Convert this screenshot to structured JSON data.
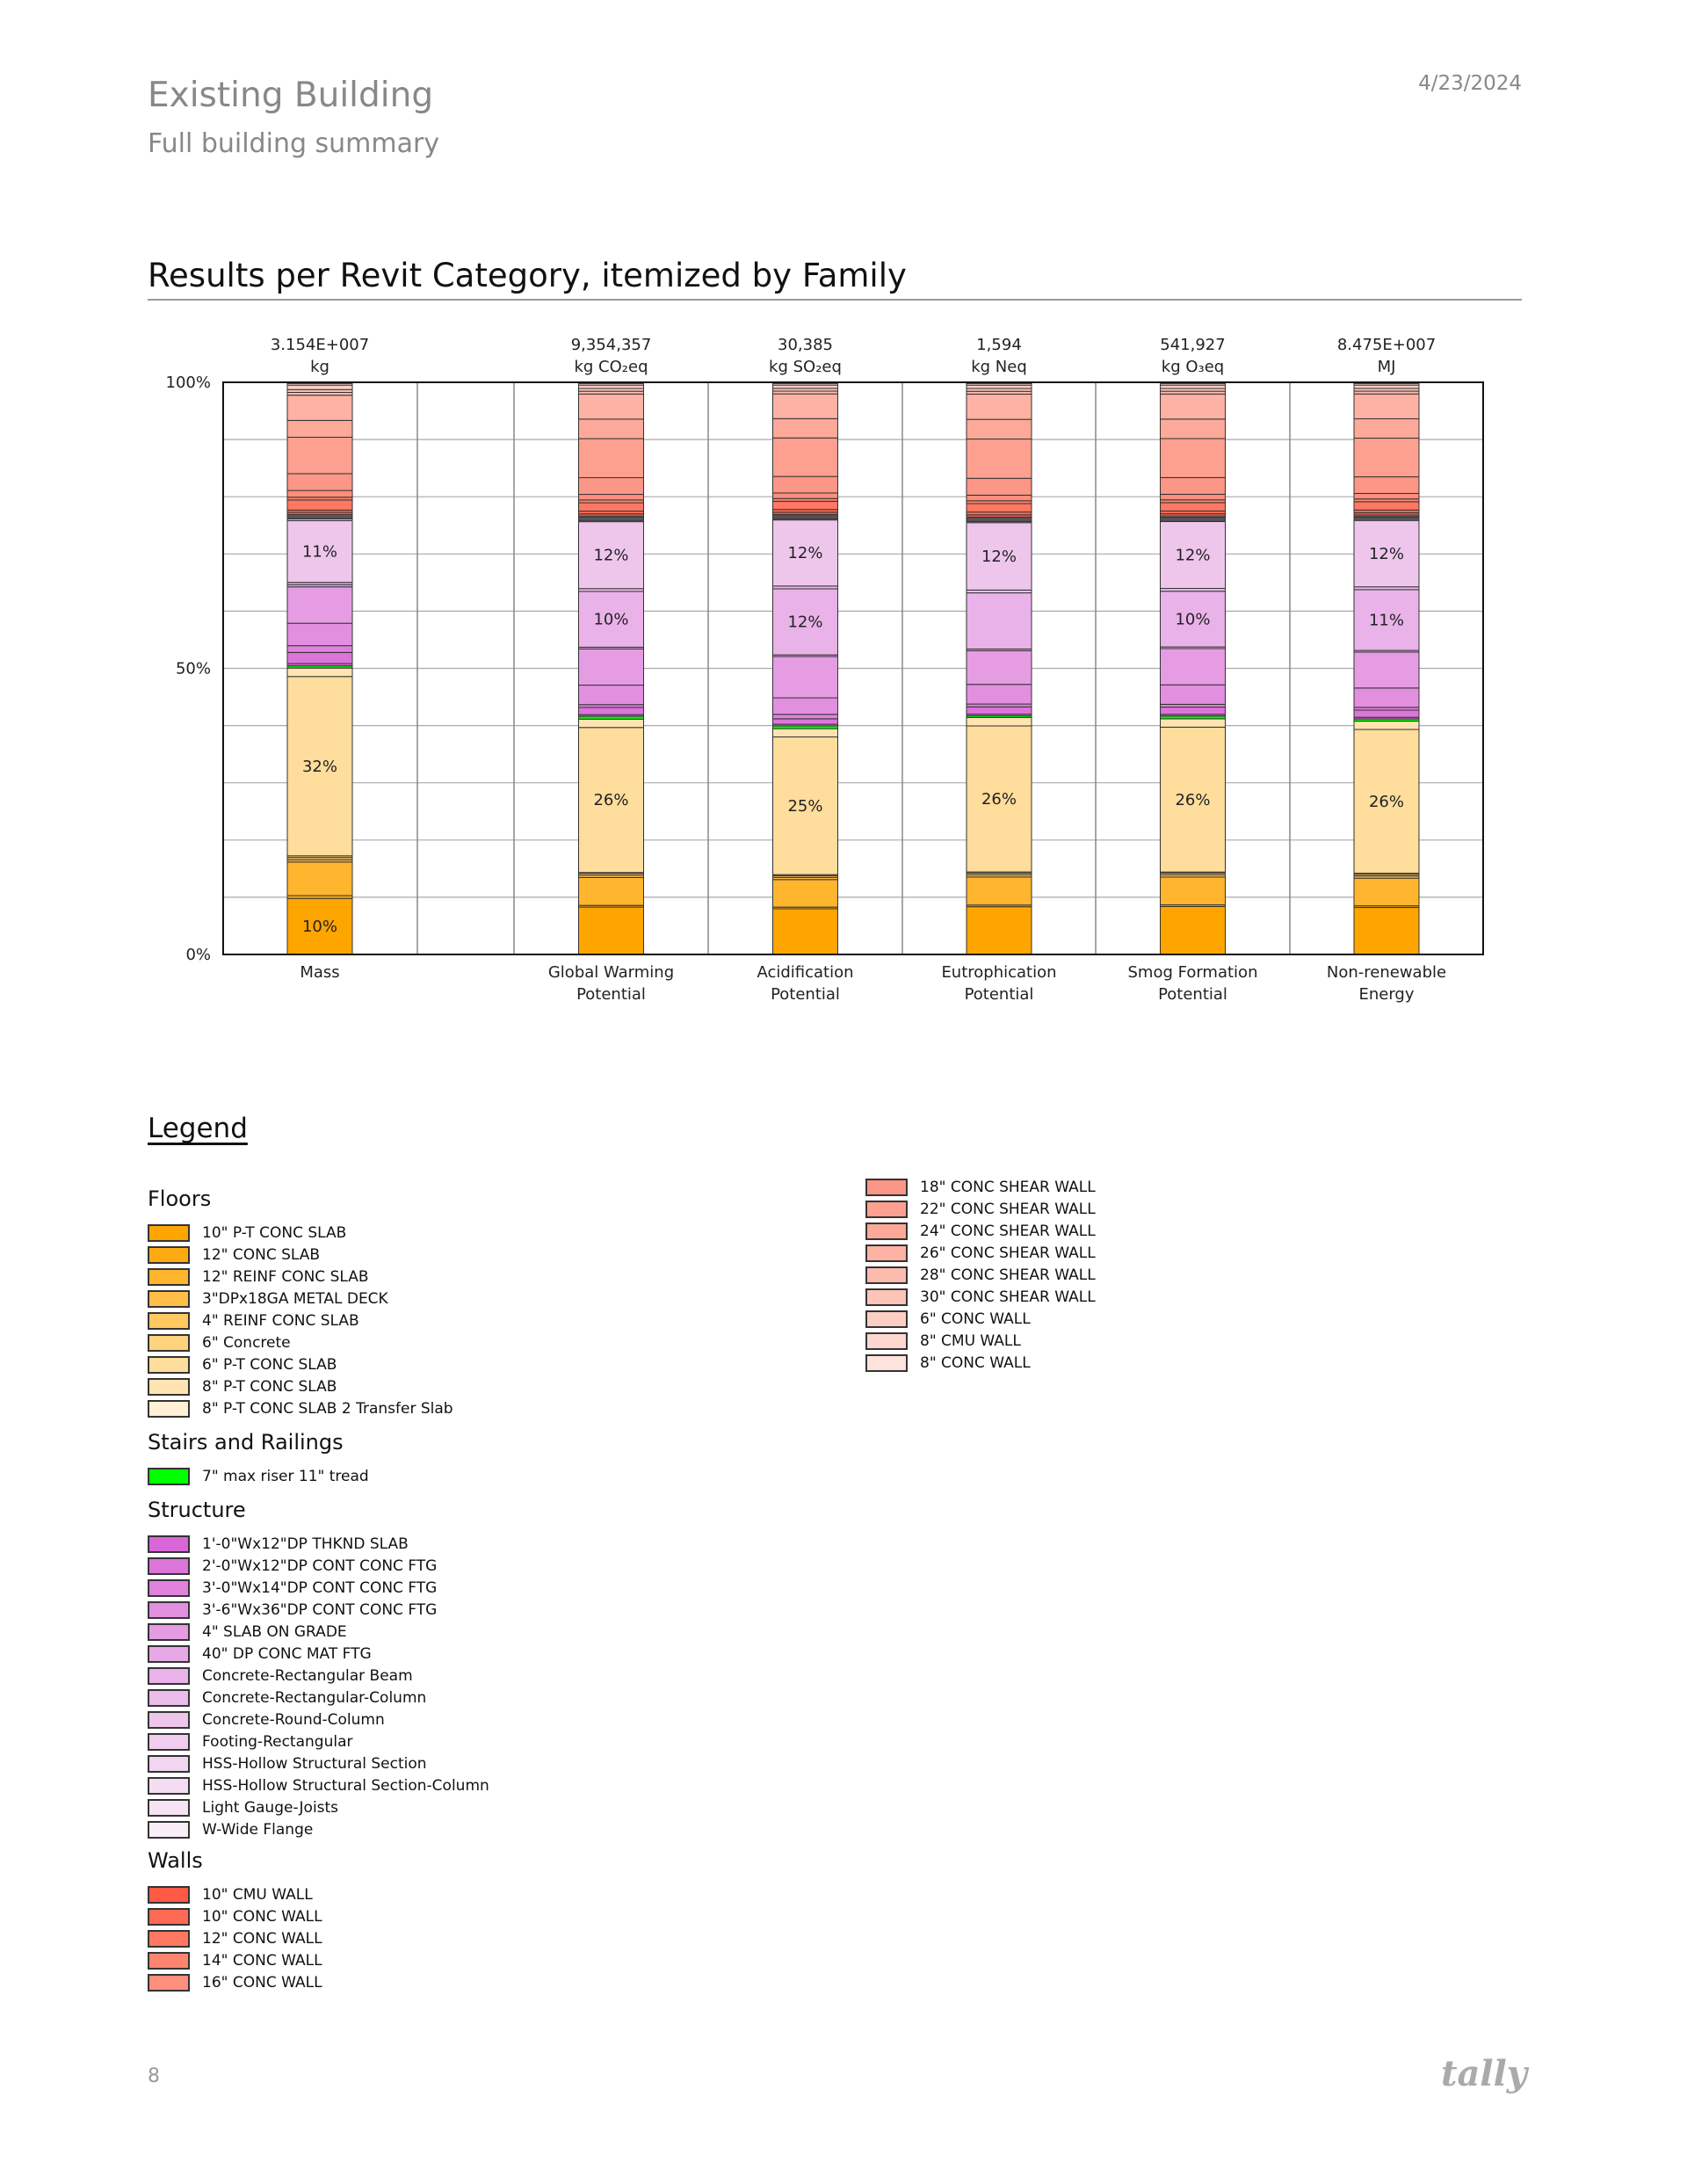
{
  "header": {
    "title": "Existing Building",
    "subtitle": "Full building summary",
    "date": "4/23/2024"
  },
  "section_title": "Results per Revit Category, itemized by Family",
  "legend": {
    "title": "Legend",
    "groups": [
      {
        "name": "Floors",
        "items": [
          {
            "label": "10\" P-T CONC SLAB",
            "color": "#FFA500"
          },
          {
            "label": "12\" CONC SLAB",
            "color": "#FFAA10"
          },
          {
            "label": "12\" REINF CONC SLAB",
            "color": "#FFB52E"
          },
          {
            "label": "3\"DPx18GA METAL DECK",
            "color": "#FFBE48"
          },
          {
            "label": "4\" REINF CONC SLAB",
            "color": "#FFC860"
          },
          {
            "label": "6\" Concrete",
            "color": "#FFD37E"
          },
          {
            "label": "6\" P-T CONC SLAB",
            "color": "#FFDD9C"
          },
          {
            "label": "8\" P-T CONC SLAB",
            "color": "#FFE4B2"
          },
          {
            "label": "8\" P-T CONC SLAB 2 Transfer Slab",
            "color": "#FFF0D6"
          }
        ]
      },
      {
        "name": "Stairs and Railings",
        "items": [
          {
            "label": "7\" max riser 11\" tread",
            "color": "#00FF00"
          }
        ]
      },
      {
        "name": "Structure",
        "items": [
          {
            "label": "1'-0\"Wx12\"DP THKND SLAB",
            "color": "#D966D6"
          },
          {
            "label": "2'-0\"Wx12\"DP CONT CONC FTG",
            "color": "#DC74DA"
          },
          {
            "label": "3'-0\"Wx14\"DP CONT CONC FTG",
            "color": "#DF82DD"
          },
          {
            "label": "3'-6\"Wx36\"DP CONT CONC FTG",
            "color": "#E28FE0"
          },
          {
            "label": "4\" SLAB ON GRADE",
            "color": "#E59CE3"
          },
          {
            "label": "40\" DP CONC MAT FTG",
            "color": "#E7A8E6"
          },
          {
            "label": "Concrete-Rectangular Beam",
            "color": "#E9B2E8"
          },
          {
            "label": "Concrete-Rectangular-Column",
            "color": "#EBBCEA"
          },
          {
            "label": "Concrete-Round-Column",
            "color": "#EEC6EC"
          },
          {
            "label": "Footing-Rectangular",
            "color": "#F0CDEE"
          },
          {
            "label": "HSS-Hollow Structural Section",
            "color": "#F2D5F1"
          },
          {
            "label": "HSS-Hollow Structural Section-Column",
            "color": "#F4DDF3"
          },
          {
            "label": "Light Gauge-Joists",
            "color": "#F6E4F5"
          },
          {
            "label": "W-Wide Flange",
            "color": "#F9EEF8"
          }
        ]
      },
      {
        "name": "Walls",
        "items": [
          {
            "label": "10\" CMU WALL",
            "color": "#FF5A46"
          },
          {
            "label": "10\" CONC WALL",
            "color": "#FF6A55"
          },
          {
            "label": "12\" CONC WALL",
            "color": "#FF7862"
          },
          {
            "label": "14\" CONC WALL",
            "color": "#FF8470"
          },
          {
            "label": "16\" CONC WALL",
            "color": "#FF8E7C"
          },
          {
            "label": "18\" CONC SHEAR WALL",
            "color": "#FC9686"
          },
          {
            "label": "22\" CONC SHEAR WALL",
            "color": "#FDA090"
          },
          {
            "label": "24\" CONC SHEAR WALL",
            "color": "#FDA99A"
          },
          {
            "label": "26\" CONC SHEAR WALL",
            "color": "#FDB2A4"
          },
          {
            "label": "28\" CONC SHEAR WALL",
            "color": "#FDBBAE"
          },
          {
            "label": "30\" CONC SHEAR WALL",
            "color": "#FDC4B8"
          },
          {
            "label": "6\" CONC WALL",
            "color": "#FDCEC4"
          },
          {
            "label": "8\" CMU WALL",
            "color": "#FED8D0"
          },
          {
            "label": "8\" CONC WALL",
            "color": "#FEE3DC"
          }
        ]
      }
    ]
  },
  "chart_data": {
    "type": "bar",
    "stacked": true,
    "normalized": true,
    "title": "Results per Revit Category, itemized by Family",
    "ylim": [
      0,
      100
    ],
    "yticks": [
      "0%",
      "50%",
      "100%"
    ],
    "grid": true,
    "categories": [
      {
        "name": "Mass",
        "name2": "",
        "total": "3.154E+007",
        "unit": "kg"
      },
      {
        "name": "",
        "name2": "",
        "total": "",
        "unit": ""
      },
      {
        "name": "Global Warming",
        "name2": "Potential",
        "total": "9,354,357",
        "unit": "kg CO₂eq"
      },
      {
        "name": "Acidification",
        "name2": "Potential",
        "total": "30,385",
        "unit": "kg SO₂eq"
      },
      {
        "name": "Eutrophication",
        "name2": "Potential",
        "total": "1,594",
        "unit": "kg Neq"
      },
      {
        "name": "Smog Formation",
        "name2": "Potential",
        "total": "541,927",
        "unit": "kg O₃eq"
      },
      {
        "name": "Non-renewable",
        "name2": "Energy",
        "total": "8.475E+007",
        "unit": "MJ"
      }
    ],
    "bars": [
      [
        [
          0,
          10,
          "10%"
        ],
        [
          1,
          0.5
        ],
        [
          2,
          6
        ],
        [
          3,
          0.4
        ],
        [
          4,
          0.4
        ],
        [
          5,
          0.3
        ],
        [
          6,
          32,
          "32%"
        ],
        [
          7,
          1.5
        ],
        [
          9,
          0.4
        ],
        [
          10,
          0.4
        ],
        [
          11,
          2
        ],
        [
          12,
          1.2
        ],
        [
          13,
          4
        ],
        [
          14,
          6.5
        ],
        [
          15,
          0.4
        ],
        [
          16,
          0.4
        ],
        [
          18,
          11,
          "11%"
        ],
        [
          19,
          0.3
        ],
        [
          20,
          0.2
        ],
        [
          21,
          0.2
        ],
        [
          22,
          0.2
        ],
        [
          23,
          0.2
        ],
        [
          24,
          0.4
        ],
        [
          25,
          0.4
        ],
        [
          26,
          1.8
        ],
        [
          27,
          0.5
        ],
        [
          28,
          1.2
        ],
        [
          29,
          3
        ],
        [
          30,
          6.5
        ],
        [
          31,
          3
        ],
        [
          32,
          4.5
        ],
        [
          33,
          0.5
        ],
        [
          34,
          0.5
        ],
        [
          35,
          0.8
        ],
        [
          36,
          0.3
        ],
        [
          37,
          0.2
        ]
      ],
      null,
      [
        [
          0,
          8.5
        ],
        [
          1,
          0.3
        ],
        [
          2,
          5
        ],
        [
          3,
          0.4
        ],
        [
          4,
          0.3
        ],
        [
          5,
          0.2
        ],
        [
          6,
          26,
          "26%"
        ],
        [
          7,
          1.5
        ],
        [
          9,
          0.5
        ],
        [
          10,
          0.3
        ],
        [
          11,
          1.3
        ],
        [
          12,
          0.5
        ],
        [
          13,
          3.5
        ],
        [
          14,
          6.5
        ],
        [
          15,
          0.3
        ],
        [
          16,
          10,
          "10%"
        ],
        [
          17,
          0.5
        ],
        [
          18,
          12,
          "12%"
        ],
        [
          19,
          0.2
        ],
        [
          20,
          0.2
        ],
        [
          21,
          0.2
        ],
        [
          22,
          0.2
        ],
        [
          23,
          0.2
        ],
        [
          24,
          0.4
        ],
        [
          25,
          0.5
        ],
        [
          26,
          1.5
        ],
        [
          27,
          0.5
        ],
        [
          28,
          1
        ],
        [
          29,
          3
        ],
        [
          30,
          7
        ],
        [
          31,
          3.5
        ],
        [
          32,
          4.5
        ],
        [
          33,
          0.5
        ],
        [
          34,
          0.5
        ],
        [
          35,
          0.6
        ],
        [
          36,
          0.3
        ],
        [
          37,
          0.2
        ]
      ],
      [
        [
          0,
          8.3
        ],
        [
          1,
          0.3
        ],
        [
          2,
          5
        ],
        [
          3,
          0.4
        ],
        [
          4,
          0.3
        ],
        [
          5,
          0.2
        ],
        [
          6,
          25,
          "25%"
        ],
        [
          7,
          1.5
        ],
        [
          9,
          0.5
        ],
        [
          10,
          0.3
        ],
        [
          11,
          1
        ],
        [
          12,
          0.8
        ],
        [
          13,
          3
        ],
        [
          14,
          7.5
        ],
        [
          15,
          0.3
        ],
        [
          16,
          12,
          "12%"
        ],
        [
          17,
          0.5
        ],
        [
          18,
          12,
          "12%"
        ],
        [
          19,
          0.2
        ],
        [
          20,
          0.2
        ],
        [
          21,
          0.2
        ],
        [
          22,
          0.2
        ],
        [
          23,
          0.2
        ],
        [
          24,
          0.4
        ],
        [
          25,
          0.5
        ],
        [
          26,
          1.5
        ],
        [
          27,
          0.5
        ],
        [
          28,
          1
        ],
        [
          29,
          3
        ],
        [
          30,
          7
        ],
        [
          31,
          3.5
        ],
        [
          32,
          4.5
        ],
        [
          33,
          0.5
        ],
        [
          34,
          0.5
        ],
        [
          35,
          0.6
        ],
        [
          36,
          0.3
        ],
        [
          37,
          0.2
        ]
      ],
      [
        [
          0,
          8.5
        ],
        [
          1,
          0.3
        ],
        [
          2,
          5
        ],
        [
          3,
          0.4
        ],
        [
          4,
          0.3
        ],
        [
          5,
          0.2
        ],
        [
          6,
          26,
          "26%"
        ],
        [
          7,
          1.5
        ],
        [
          9,
          0.3
        ],
        [
          10,
          0.3
        ],
        [
          11,
          1.3
        ],
        [
          12,
          0.5
        ],
        [
          13,
          3.5
        ],
        [
          14,
          6
        ],
        [
          15,
          0.3
        ],
        [
          16,
          10
        ],
        [
          17,
          0.5
        ],
        [
          18,
          12,
          "12%"
        ],
        [
          19,
          0.2
        ],
        [
          20,
          0.2
        ],
        [
          21,
          0.2
        ],
        [
          22,
          0.2
        ],
        [
          23,
          0.2
        ],
        [
          24,
          0.4
        ],
        [
          25,
          0.5
        ],
        [
          26,
          1.5
        ],
        [
          27,
          0.5
        ],
        [
          28,
          1
        ],
        [
          29,
          3
        ],
        [
          30,
          7
        ],
        [
          31,
          3.5
        ],
        [
          32,
          4.5
        ],
        [
          33,
          0.5
        ],
        [
          34,
          0.5
        ],
        [
          35,
          0.6
        ],
        [
          36,
          0.3
        ],
        [
          37,
          0.2
        ]
      ],
      [
        [
          0,
          8.6
        ],
        [
          1,
          0.3
        ],
        [
          2,
          5
        ],
        [
          3,
          0.4
        ],
        [
          4,
          0.3
        ],
        [
          5,
          0.2
        ],
        [
          6,
          26,
          "26%"
        ],
        [
          7,
          1.5
        ],
        [
          9,
          0.5
        ],
        [
          10,
          0.3
        ],
        [
          11,
          1.3
        ],
        [
          12,
          0.5
        ],
        [
          13,
          3.5
        ],
        [
          14,
          6.5
        ],
        [
          15,
          0.3
        ],
        [
          16,
          10,
          "10%"
        ],
        [
          17,
          0.5
        ],
        [
          18,
          12,
          "12%"
        ],
        [
          19,
          0.2
        ],
        [
          20,
          0.2
        ],
        [
          21,
          0.2
        ],
        [
          22,
          0.2
        ],
        [
          23,
          0.2
        ],
        [
          24,
          0.4
        ],
        [
          25,
          0.5
        ],
        [
          26,
          1.5
        ],
        [
          27,
          0.5
        ],
        [
          28,
          1
        ],
        [
          29,
          3
        ],
        [
          30,
          7
        ],
        [
          31,
          3.5
        ],
        [
          32,
          4.5
        ],
        [
          33,
          0.5
        ],
        [
          34,
          0.5
        ],
        [
          35,
          0.6
        ],
        [
          36,
          0.3
        ],
        [
          37,
          0.2
        ]
      ],
      [
        [
          0,
          8.5
        ],
        [
          1,
          0.3
        ],
        [
          2,
          5
        ],
        [
          3,
          0.4
        ],
        [
          4,
          0.3
        ],
        [
          5,
          0.2
        ],
        [
          6,
          26,
          "26%"
        ],
        [
          7,
          1.5
        ],
        [
          9,
          0.4
        ],
        [
          10,
          0.3
        ],
        [
          11,
          1.3
        ],
        [
          12,
          0.5
        ],
        [
          13,
          3.5
        ],
        [
          14,
          6.5
        ],
        [
          15,
          0.3
        ],
        [
          16,
          11,
          "11%"
        ],
        [
          17,
          0.5
        ],
        [
          18,
          12,
          "12%"
        ],
        [
          19,
          0.2
        ],
        [
          20,
          0.2
        ],
        [
          21,
          0.2
        ],
        [
          22,
          0.2
        ],
        [
          23,
          0.2
        ],
        [
          24,
          0.4
        ],
        [
          25,
          0.5
        ],
        [
          26,
          1.5
        ],
        [
          27,
          0.5
        ],
        [
          28,
          1
        ],
        [
          29,
          3
        ],
        [
          30,
          7
        ],
        [
          31,
          3.5
        ],
        [
          32,
          4.5
        ],
        [
          33,
          0.5
        ],
        [
          34,
          0.5
        ],
        [
          35,
          0.6
        ],
        [
          36,
          0.3
        ],
        [
          37,
          0.2
        ]
      ]
    ]
  },
  "footer": {
    "page": "8",
    "logo": "tally"
  }
}
